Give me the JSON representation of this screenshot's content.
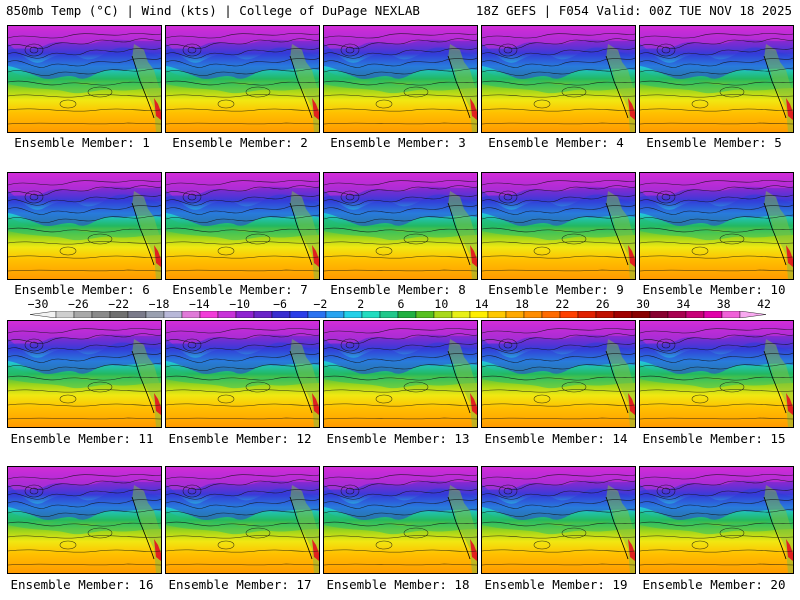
{
  "header": {
    "left": "850mb Temp (°C) | Wind (kts) | College of DuPage NEXLAB",
    "right": "18Z GEFS | F054 Valid: 00Z TUE NOV 18 2025"
  },
  "members": [
    "Ensemble Member: 1",
    "Ensemble Member: 2",
    "Ensemble Member: 3",
    "Ensemble Member: 4",
    "Ensemble Member: 5",
    "Ensemble Member: 6",
    "Ensemble Member: 7",
    "Ensemble Member: 8",
    "Ensemble Member: 9",
    "Ensemble Member: 10",
    "Ensemble Member: 11",
    "Ensemble Member: 12",
    "Ensemble Member: 13",
    "Ensemble Member: 14",
    "Ensemble Member: 15",
    "Ensemble Member: 16",
    "Ensemble Member: 17",
    "Ensemble Member: 18",
    "Ensemble Member: 19",
    "Ensemble Member: 20"
  ],
  "colorbar": {
    "labels": [
      "−30",
      "−26",
      "−22",
      "−18",
      "−14",
      "−10",
      "−6",
      "−2",
      "2",
      "6",
      "10",
      "14",
      "18",
      "22",
      "26",
      "30",
      "34",
      "38",
      "42"
    ],
    "colors": [
      "#f2f2f2",
      "#cfcfcf",
      "#a8a8a8",
      "#8a8a8a",
      "#707070",
      "#7a7a8a",
      "#9aa0b0",
      "#b8b8d8",
      "#e07ad8",
      "#f23ad8",
      "#c832d8",
      "#8f22d0",
      "#6a24c8",
      "#3a2ed0",
      "#2a3ee8",
      "#2a72f0",
      "#29a4f0",
      "#22d0e8",
      "#22dcc0",
      "#22c88a",
      "#20b040",
      "#58c020",
      "#a8d81a",
      "#e8f018",
      "#ffee00",
      "#ffc800",
      "#ffa800",
      "#ff8c00",
      "#ff6a00",
      "#ff4000",
      "#e02000",
      "#c01000",
      "#a00000",
      "#880000",
      "#880030",
      "#a80050",
      "#c80078",
      "#e000a8",
      "#f060d8",
      "#f8a8f0"
    ]
  }
}
